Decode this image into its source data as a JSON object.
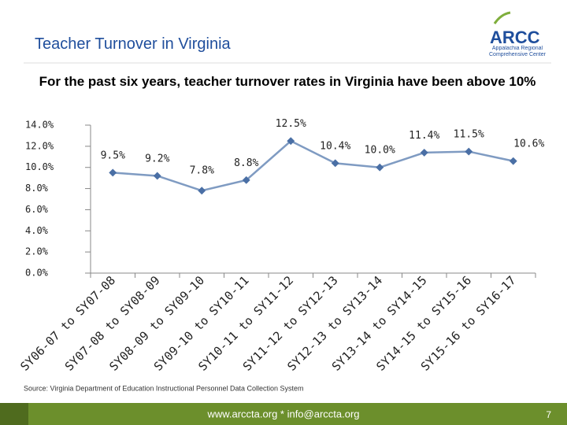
{
  "chart_data": {
    "type": "line",
    "title": "Teacher Turnover in Virginia",
    "subtitle": "For the past six years, teacher turnover rates in Virginia have been above 10%",
    "categories": [
      "SY06-07 to SY07-08",
      "SY07-08 to SY08-09",
      "SY08-09 to SY09-10",
      "SY09-10 to SY10-11",
      "SY10-11 to SY11-12",
      "SY11-12 to SY12-13",
      "SY12-13 to SY13-14",
      "SY13-14 to SY14-15",
      "SY14-15 to SY15-16",
      "SY15-16 to SY16-17"
    ],
    "values": [
      9.5,
      9.2,
      7.8,
      8.8,
      12.5,
      10.4,
      10.0,
      11.4,
      11.5,
      10.6
    ],
    "value_labels": [
      "9.5%",
      "9.2%",
      "7.8%",
      "8.8%",
      "12.5%",
      "10.4%",
      "10.0%",
      "11.4%",
      "11.5%",
      "10.6%"
    ],
    "color": "#7f9bc2",
    "marker_color": "#4a6fa5",
    "ylim": [
      0,
      14
    ],
    "yticks": [
      {
        "value": 0,
        "label": "0.0%"
      },
      {
        "value": 2,
        "label": "2.0%"
      },
      {
        "value": 4,
        "label": "4.0%"
      },
      {
        "value": 6,
        "label": "6.0%"
      },
      {
        "value": 8,
        "label": "8.0%"
      },
      {
        "value": 10,
        "label": "10.0%"
      },
      {
        "value": 12,
        "label": "12.0%"
      },
      {
        "value": 14,
        "label": "14.0%"
      }
    ],
    "grid": false,
    "source": "Source: Virginia Department of Education Instructional Personnel Data Collection System"
  },
  "slide": {
    "logo": "ARCC",
    "logo_subtitle": "Appalachia Regional Comprehensive Center",
    "footer": "www.arccta.org  *  info@arccta.org",
    "page_number": "7"
  }
}
